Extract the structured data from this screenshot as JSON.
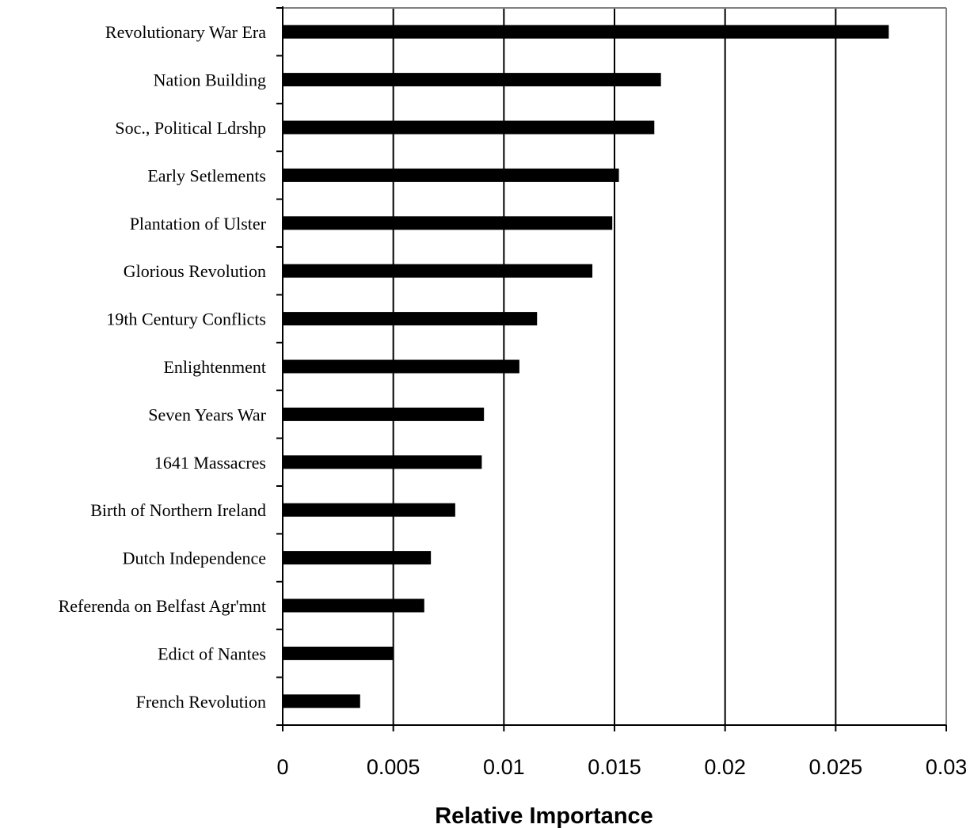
{
  "chart_data": {
    "type": "bar",
    "orientation": "horizontal",
    "categories": [
      "Revolutionary War Era",
      "Nation Building",
      "Soc., Political Ldrshp",
      "Early Setlements",
      "Plantation of Ulster",
      "Glorious Revolution",
      "19th Century Conflicts",
      "Enlightenment",
      "Seven Years War",
      "1641 Massacres",
      "Birth of Northern Ireland",
      "Dutch Independence",
      "Referenda on Belfast Agr'mnt",
      "Edict of Nantes",
      "French Revolution"
    ],
    "values": [
      0.0274,
      0.0171,
      0.0168,
      0.0152,
      0.0149,
      0.014,
      0.0115,
      0.0107,
      0.0091,
      0.009,
      0.0078,
      0.0067,
      0.0064,
      0.005,
      0.0035
    ],
    "xlabel": "Relative Importance",
    "ylabel": "",
    "title": "",
    "xlim": [
      0,
      0.03
    ],
    "xticks": [
      "0",
      "0.005",
      "0.01",
      "0.015",
      "0.02",
      "0.025",
      "0.03"
    ],
    "grid": "vertical",
    "bar_color": "#000000",
    "frame_color": "#808080",
    "legend": "none"
  }
}
